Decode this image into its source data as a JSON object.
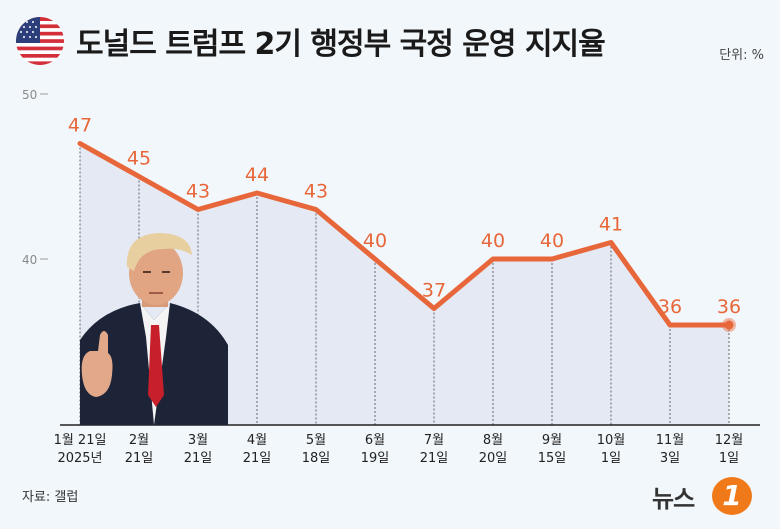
{
  "header": {
    "title": "도널드 트럼프 2기 행정부 국정 운영 지지율",
    "unit": "단위: %"
  },
  "footer": {
    "source": "자료: 갤럽",
    "logo_text": "뉴스",
    "logo_mark": "1"
  },
  "colors": {
    "line": "#e8673a",
    "area": "#e2e6f1",
    "background": "#f2f7fb"
  },
  "chart_data": {
    "type": "area",
    "title": "도널드 트럼프 2기 행정부 국정 운영 지지율",
    "unit": "%",
    "ylim": [
      30,
      50
    ],
    "yticks": [
      40,
      50
    ],
    "grid": "vertical dashed",
    "categories": [
      [
        "1월 21일",
        "2025년"
      ],
      [
        "2월",
        "21일"
      ],
      [
        "3월",
        "21일"
      ],
      [
        "4월",
        "21일"
      ],
      [
        "5월",
        "18일"
      ],
      [
        "6월",
        "19일"
      ],
      [
        "7월",
        "21일"
      ],
      [
        "8월",
        "20일"
      ],
      [
        "9월",
        "15일"
      ],
      [
        "10월",
        "1일"
      ],
      [
        "11월",
        "3일"
      ],
      [
        "12월",
        "1일"
      ]
    ],
    "values": [
      47,
      45,
      43,
      44,
      43,
      40,
      37,
      40,
      40,
      41,
      36,
      36
    ]
  }
}
